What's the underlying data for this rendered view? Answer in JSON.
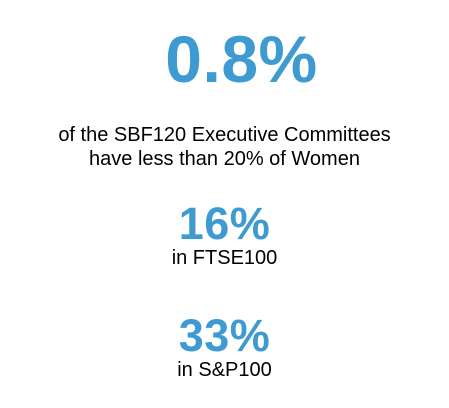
{
  "accent_color": "#3d9bd1",
  "stats": [
    {
      "value": "0.8%",
      "caption_lines": [
        "of the SBF120 Executive Committees",
        "have less than 20% of Women"
      ]
    },
    {
      "value": "16%",
      "caption_lines": [
        "in FTSE100"
      ]
    },
    {
      "value": "33%",
      "caption_lines": [
        "in S&P100"
      ]
    }
  ]
}
